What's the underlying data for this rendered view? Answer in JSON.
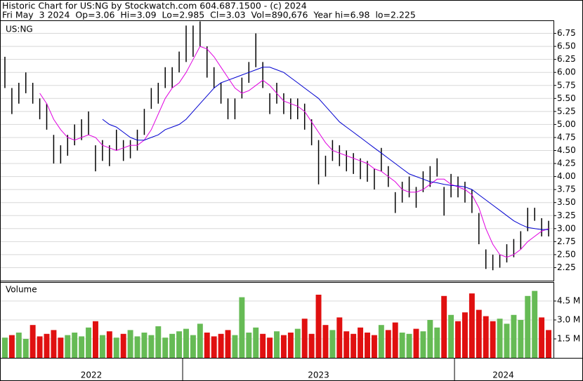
{
  "chart_data": {
    "type": "ohlc",
    "title": "Historic Chart for US:NG by Stockwatch.com 604.687.1500 - (c) 2024",
    "subtitle": "Fri May  3 2024  Op=3.06  Hi=3.09  Lo=2.985  Cl=3.03  Vol=890,676  Year hi=6.98  lo=2.225",
    "symbol": "US:NG",
    "volume_label": "Volume",
    "years": [
      {
        "label": "2022",
        "start": 0
      },
      {
        "label": "2023",
        "start": 26
      },
      {
        "label": "2024",
        "start": 65
      }
    ],
    "high": [
      6.3,
      5.7,
      5.8,
      6.0,
      5.8,
      5.5,
      5.4,
      4.8,
      4.6,
      4.8,
      5.0,
      5.1,
      5.25,
      4.6,
      4.7,
      4.6,
      4.9,
      4.7,
      4.7,
      4.9,
      5.3,
      5.7,
      5.8,
      6.1,
      6.1,
      6.4,
      6.9,
      6.9,
      6.98,
      6.5,
      6.1,
      5.8,
      5.5,
      5.5,
      5.9,
      6.2,
      6.75,
      6.2,
      5.6,
      5.8,
      5.6,
      5.5,
      5.5,
      5.4,
      5.1,
      4.7,
      4.4,
      4.7,
      4.6,
      4.5,
      4.45,
      4.35,
      4.3,
      4.15,
      4.55,
      4.2,
      3.7,
      3.9,
      4.0,
      3.8,
      4.1,
      4.2,
      4.35,
      3.8,
      4.05,
      4.0,
      3.9,
      3.75,
      3.3,
      2.6,
      2.5,
      2.5,
      2.7,
      2.8,
      2.95,
      3.4,
      3.4,
      3.2,
      3.15
    ],
    "low": [
      5.7,
      5.2,
      5.4,
      5.6,
      5.4,
      5.1,
      4.9,
      4.25,
      4.25,
      4.4,
      4.6,
      4.7,
      4.8,
      4.1,
      4.3,
      4.2,
      4.5,
      4.3,
      4.35,
      4.5,
      4.8,
      5.3,
      5.4,
      5.7,
      5.7,
      6.0,
      6.2,
      6.3,
      6.5,
      5.9,
      5.7,
      5.4,
      5.1,
      5.1,
      5.5,
      5.8,
      6.1,
      5.7,
      5.2,
      5.4,
      5.2,
      5.1,
      5.1,
      4.9,
      4.6,
      3.85,
      4.0,
      4.3,
      4.2,
      4.1,
      4.05,
      3.95,
      3.9,
      3.75,
      4.1,
      3.8,
      3.3,
      3.5,
      3.6,
      3.4,
      3.7,
      3.8,
      4.0,
      3.25,
      3.6,
      3.6,
      3.5,
      3.3,
      2.7,
      2.225,
      2.2,
      2.25,
      2.35,
      2.45,
      2.6,
      2.95,
      3.15,
      2.85,
      2.85
    ],
    "bar_color": "#000000",
    "series": [
      {
        "color": "#e000e0",
        "values": [
          null,
          null,
          null,
          null,
          null,
          5.6,
          5.4,
          5.1,
          4.9,
          4.75,
          4.7,
          4.75,
          4.8,
          4.75,
          4.6,
          4.55,
          4.5,
          4.55,
          4.6,
          4.6,
          4.7,
          4.9,
          5.2,
          5.5,
          5.7,
          5.8,
          6.0,
          6.25,
          6.5,
          6.45,
          6.3,
          6.1,
          5.9,
          5.7,
          5.6,
          5.65,
          5.75,
          5.85,
          5.75,
          5.6,
          5.45,
          5.4,
          5.35,
          5.25,
          5.05,
          4.85,
          4.65,
          4.5,
          4.45,
          4.4,
          4.35,
          4.3,
          4.25,
          4.15,
          4.1,
          4.0,
          3.9,
          3.75,
          3.7,
          3.7,
          3.75,
          3.85,
          3.95,
          3.95,
          3.85,
          3.8,
          3.75,
          3.65,
          3.4,
          3.0,
          2.7,
          2.5,
          2.45,
          2.5,
          2.6,
          2.75,
          2.85,
          2.95,
          3.0
        ]
      },
      {
        "color": "#0000d0",
        "values": [
          null,
          null,
          null,
          null,
          null,
          null,
          null,
          null,
          null,
          null,
          null,
          null,
          null,
          null,
          5.1,
          5.0,
          4.95,
          4.85,
          4.75,
          4.7,
          4.7,
          4.75,
          4.8,
          4.9,
          4.95,
          5.0,
          5.1,
          5.25,
          5.4,
          5.55,
          5.7,
          5.8,
          5.85,
          5.9,
          5.95,
          6.0,
          6.05,
          6.1,
          6.1,
          6.05,
          6.0,
          5.9,
          5.8,
          5.7,
          5.6,
          5.5,
          5.35,
          5.2,
          5.05,
          4.95,
          4.85,
          4.75,
          4.65,
          4.55,
          4.45,
          4.35,
          4.25,
          4.15,
          4.05,
          4.0,
          3.95,
          3.9,
          3.88,
          3.85,
          3.83,
          3.82,
          3.8,
          3.75,
          3.65,
          3.55,
          3.45,
          3.35,
          3.25,
          3.15,
          3.08,
          3.02,
          3.0,
          2.98,
          2.98
        ]
      }
    ],
    "ylim": [
      2.0,
      7.0
    ],
    "yticks": [
      2.25,
      {
        "value": 2.5,
        "label": "2.50"
      },
      2.75,
      {
        "value": 3,
        "label": "3.00"
      },
      3.25,
      {
        "value": 3.5,
        "label": "3.50"
      },
      3.75,
      {
        "value": 4,
        "label": "4.00"
      },
      4.25,
      {
        "value": 4.5,
        "label": "4.50"
      },
      4.75,
      {
        "value": 5,
        "label": "5.00"
      },
      5.25,
      {
        "value": 5.5,
        "label": "5.50"
      },
      5.75,
      {
        "value": 6,
        "label": "6.00"
      },
      6.25,
      {
        "value": 6.5,
        "label": "6.50"
      },
      6.75
    ],
    "grid": true,
    "volume": [
      1600000,
      1800000,
      2000000,
      1500000,
      2600000,
      1700000,
      1900000,
      2200000,
      1600000,
      1800000,
      2000000,
      1700000,
      2400000,
      2900000,
      1800000,
      2100000,
      1600000,
      1900000,
      2200000,
      1700000,
      2000000,
      1800000,
      2500000,
      1600000,
      1900000,
      2100000,
      2300000,
      1800000,
      2700000,
      2000000,
      1700000,
      1900000,
      2200000,
      1800000,
      4800000,
      2000000,
      2400000,
      1900000,
      1600000,
      2100000,
      1800000,
      2000000,
      2300000,
      3100000,
      1900000,
      5000000,
      2600000,
      2200000,
      3200000,
      2100000,
      1900000,
      2400000,
      2000000,
      1800000,
      2600000,
      2200000,
      2800000,
      2000000,
      1900000,
      2300000,
      2100000,
      3000000,
      2400000,
      4900000,
      3400000,
      2900000,
      3600000,
      5100000,
      3800000,
      3300000,
      2900000,
      3100000,
      2700000,
      3400000,
      3000000,
      4900000,
      5300000,
      3200000,
      2200000
    ],
    "volume_up_color": "#66bb55",
    "volume_down_color": "#e01010",
    "volume_ylim": [
      0,
      6000000
    ],
    "volume_yticks": [
      {
        "value": 1500000,
        "label": "1.5 M"
      },
      {
        "value": 3000000,
        "label": "3.0 M"
      },
      {
        "value": 4500000,
        "label": "4.5 M"
      }
    ]
  }
}
